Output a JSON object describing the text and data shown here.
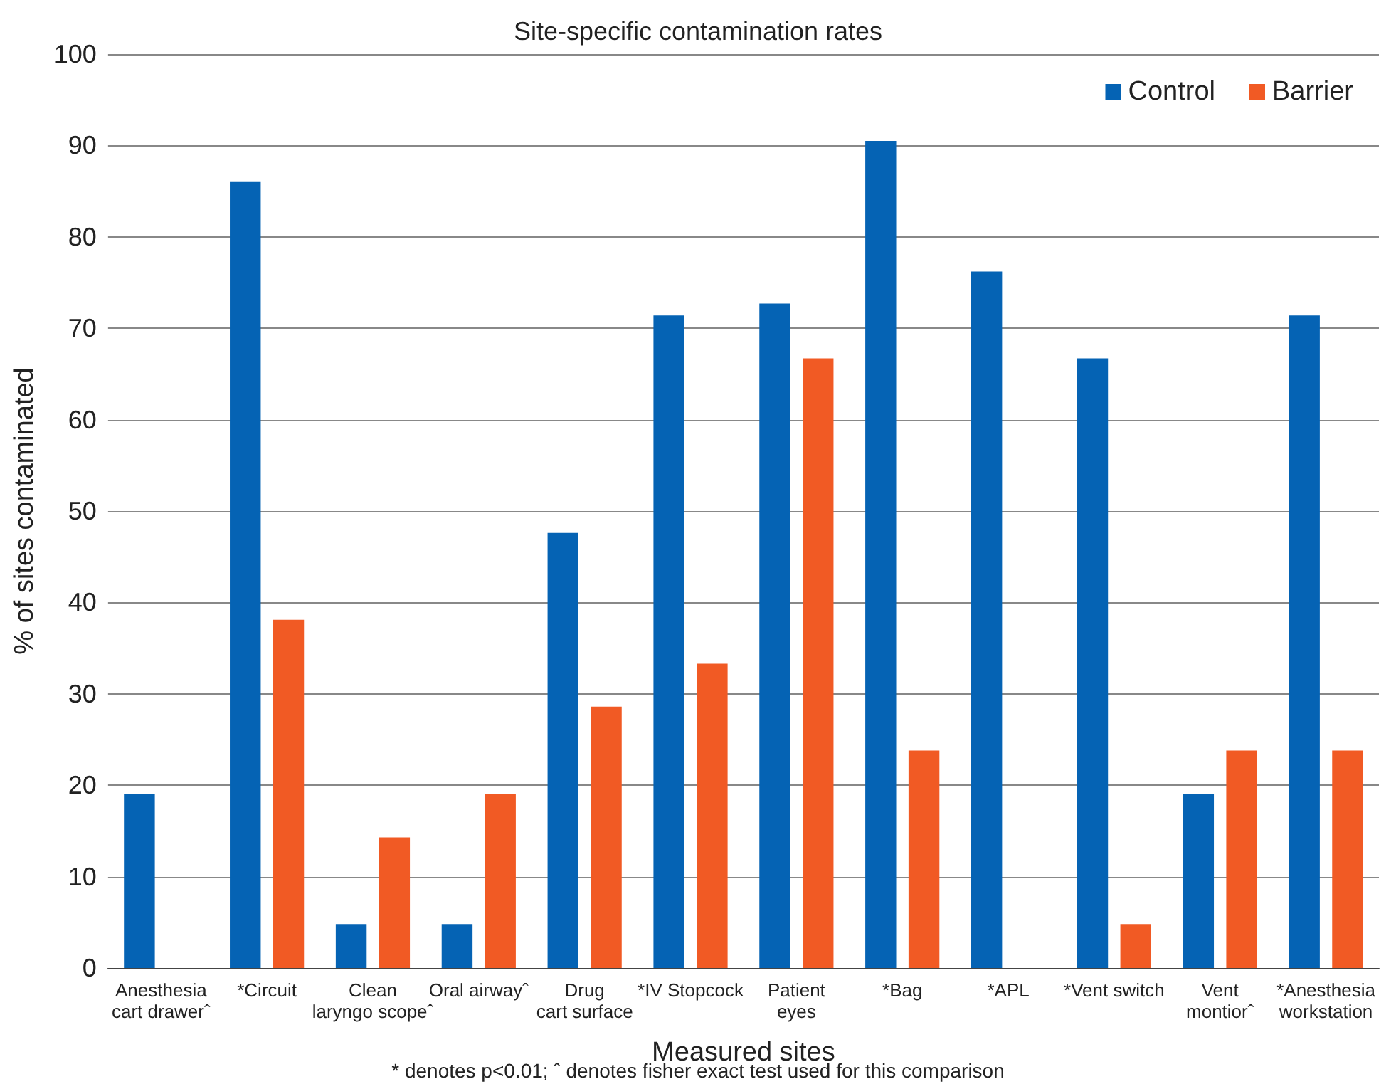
{
  "chart_data": {
    "type": "bar",
    "title": "Site-specific contamination rates",
    "xlabel": "Measured sites",
    "ylabel": "% of sites contaminated",
    "categories": [
      "Anesthesia\ncart drawerˆ",
      "*Circuit",
      "Clean\nlaryngo scopeˆ",
      "Oral airwayˆ",
      "Drug\ncart surface",
      "*IV Stopcock",
      "Patient\neyes",
      "*Bag",
      "*APL",
      "*Vent switch",
      "Vent\nmontiorˆ",
      "*Anesthesia\nworkstation"
    ],
    "series": [
      {
        "name": "Control",
        "color": "#0563b4",
        "values": [
          19,
          86,
          4.8,
          4.8,
          47.6,
          71.4,
          72.7,
          90.5,
          76.2,
          66.7,
          19,
          71.4
        ]
      },
      {
        "name": "Barrier",
        "color": "#f15a24",
        "values": [
          0,
          38.1,
          14.3,
          19,
          28.6,
          33.3,
          66.7,
          23.8,
          0,
          4.8,
          23.8,
          23.8
        ]
      }
    ],
    "ylim": [
      0,
      100
    ],
    "yticks": [
      0,
      10,
      20,
      30,
      40,
      50,
      60,
      70,
      80,
      90,
      100
    ],
    "grid": "y",
    "legend": "top right",
    "annotations": [
      "* denotes p<0.01; ˆ denotes fisher exact test used for this comparison"
    ]
  }
}
